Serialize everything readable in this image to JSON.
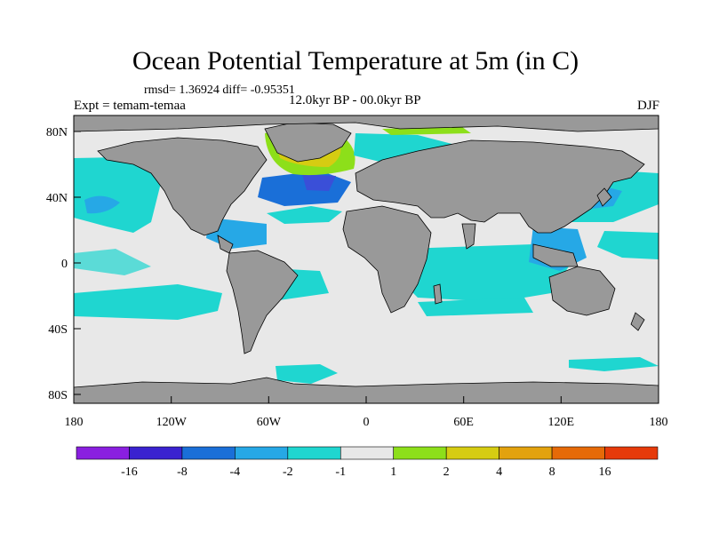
{
  "title": "Ocean Potential Temperature at 5m (in C)",
  "stats": "rmsd= 1.36924 diff= -0.95351",
  "experiment": "Expt = temam-temaa",
  "period": "12.0kyr BP - 00.0kyr BP",
  "season": "DJF",
  "axes": {
    "x_ticks": [
      "180",
      "120W",
      "60W",
      "0",
      "60E",
      "120E",
      "180"
    ],
    "y_ticks": [
      "80N",
      "40N",
      "0",
      "40S",
      "80S"
    ]
  },
  "colorbar": {
    "labels": [
      "-16",
      "-8",
      "-4",
      "-2",
      "-1",
      "1",
      "2",
      "4",
      "8",
      "16"
    ],
    "colors": [
      "#8a1fe0",
      "#3a22d0",
      "#1a6fd8",
      "#26a8e6",
      "#1fd6d0",
      "#e8e8e8",
      "#8ddf1a",
      "#d6cc12",
      "#e3a20e",
      "#e66a08",
      "#e63a0a"
    ]
  },
  "palette": {
    "land": "#999999",
    "near_zero": "#e8e8e8",
    "cyan": "#1fd6d0",
    "light_blue": "#26a8e6",
    "blue": "#1a6fd8",
    "green": "#8ddf1a",
    "yellow": "#d6cc12"
  }
}
